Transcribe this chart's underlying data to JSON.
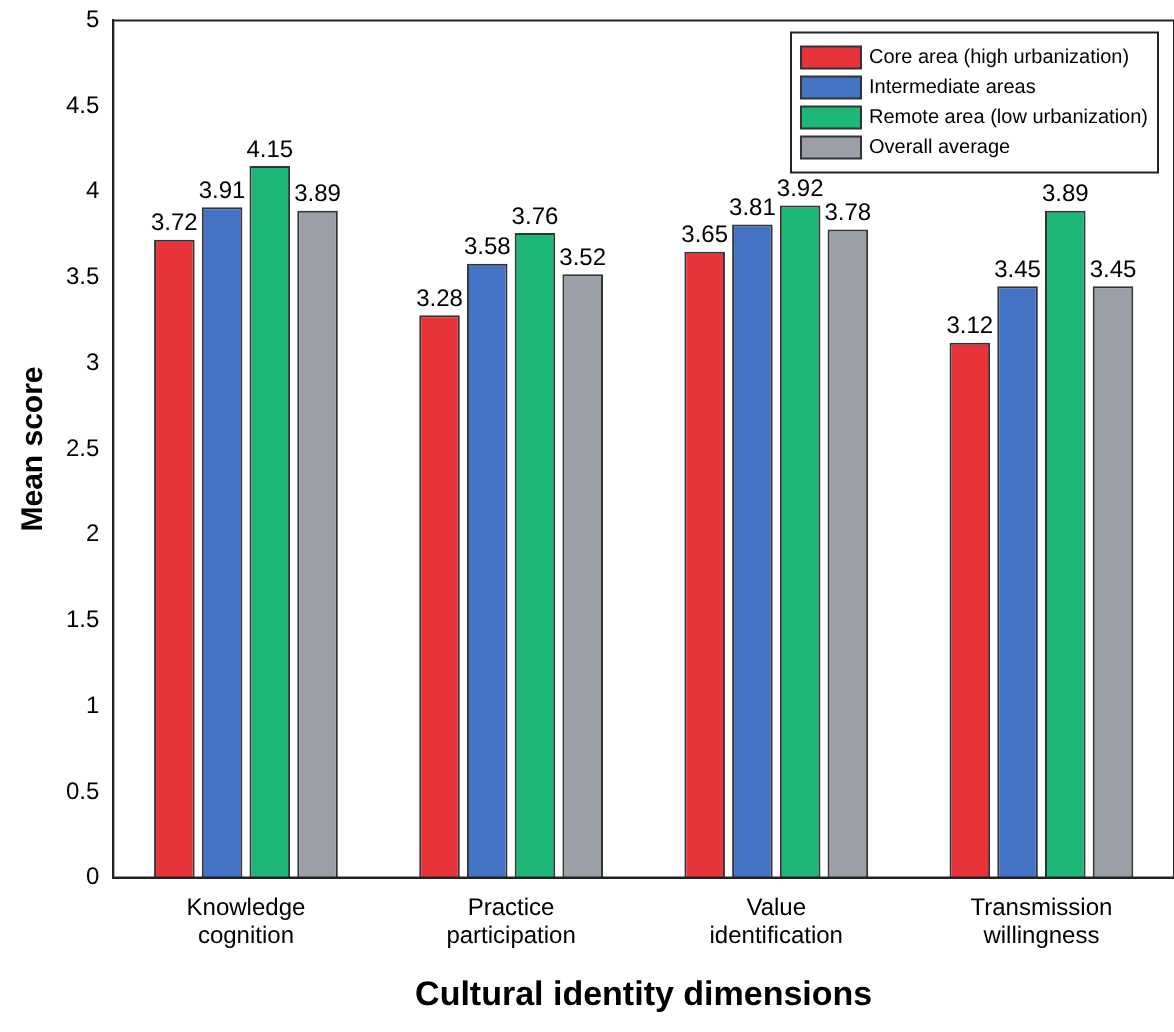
{
  "chart_data": {
    "type": "bar",
    "xlabel": "Cultural identity dimensions",
    "ylabel": "Mean score",
    "categories": [
      "Knowledge cognition",
      "Practice participation",
      "Value identification",
      "Transmission willingness"
    ],
    "series": [
      {
        "name": "Core area (high urbanization)",
        "color": "#e8333b",
        "values": [
          3.72,
          3.28,
          3.65,
          3.12
        ]
      },
      {
        "name": "Intermediate areas",
        "color": "#4472c4",
        "values": [
          3.91,
          3.58,
          3.81,
          3.45
        ]
      },
      {
        "name": "Remote area (low urbanization)",
        "color": "#1db877",
        "values": [
          4.15,
          3.76,
          3.92,
          3.89
        ]
      },
      {
        "name": "Overall average",
        "color": "#9a9fa8",
        "values": [
          3.89,
          3.52,
          3.78,
          3.45
        ]
      }
    ],
    "ylim": [
      0,
      5
    ],
    "yticks": [
      0,
      0.5,
      1,
      1.5,
      2,
      2.5,
      3,
      3.5,
      4,
      4.5,
      5
    ],
    "grid": false,
    "legend": "top right",
    "data_labels": true
  }
}
